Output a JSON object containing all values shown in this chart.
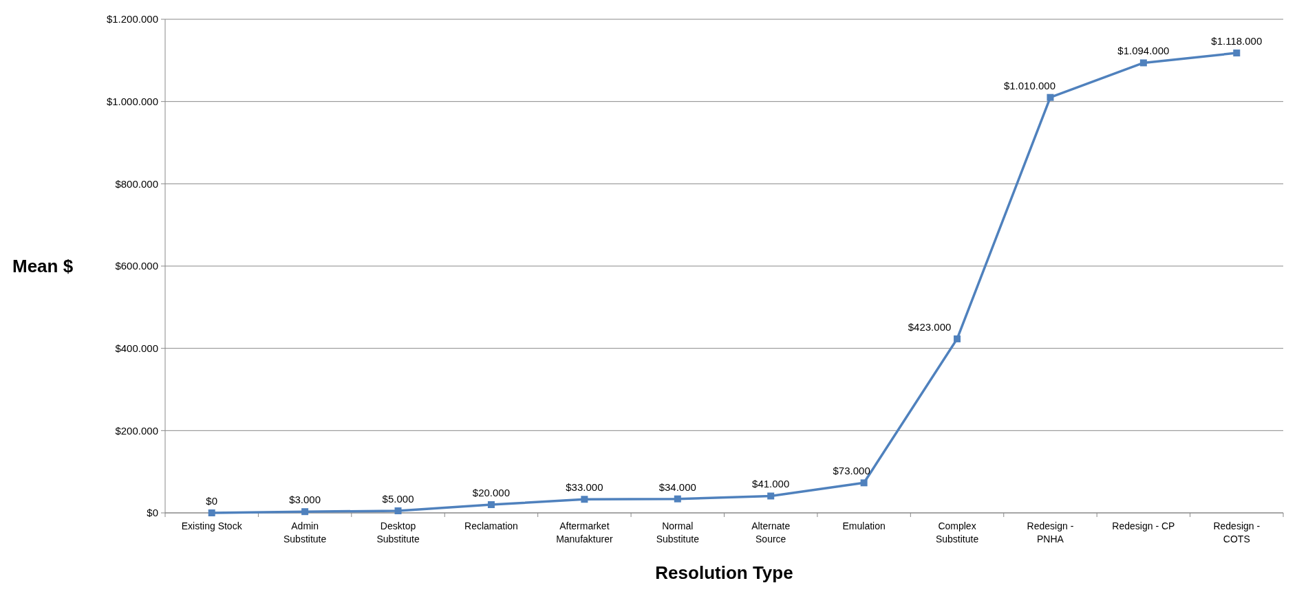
{
  "chart_data": {
    "type": "line",
    "xlabel": "Resolution Type",
    "ylabel": "Mean $",
    "categories": [
      "Existing Stock",
      "Admin Substitute",
      "Desktop Substitute",
      "Reclamation",
      "Aftermarket Manufakturer",
      "Normal Substitute",
      "Alternate Source",
      "Emulation",
      "Complex Substitute",
      "Redesign - PNHA",
      "Redesign - CP",
      "Redesign - COTS"
    ],
    "series": [
      {
        "color": "#4f81bd",
        "values": [
          0,
          3000,
          5000,
          20000,
          33000,
          34000,
          41000,
          73000,
          423000,
          1010000,
          1094000,
          1118000
        ],
        "value_labels": [
          "$0",
          "$3.000",
          "$5.000",
          "$20.000",
          "$33.000",
          "$34.000",
          "$41.000",
          "$73.000",
          "$423.000",
          "$1.010.000",
          "$1.094.000",
          "$1.118.000"
        ]
      }
    ],
    "ylim": [
      0,
      1200000
    ],
    "yticks": [
      {
        "value": 0,
        "label": "$0"
      },
      {
        "value": 200000,
        "label": "$200.000"
      },
      {
        "value": 400000,
        "label": "$400.000"
      },
      {
        "value": 600000,
        "label": "$600.000"
      },
      {
        "value": 800000,
        "label": "$800.000"
      },
      {
        "value": 1000000,
        "label": "$1.000.000"
      },
      {
        "value": 1200000,
        "label": "$1.200.000"
      }
    ],
    "grid": "y",
    "marker": "square",
    "line_style": "solid"
  }
}
